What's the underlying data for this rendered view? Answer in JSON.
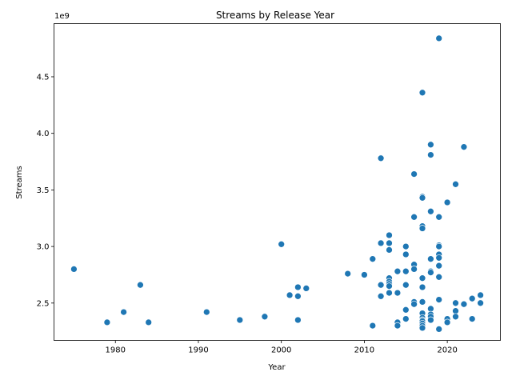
{
  "chart_data": {
    "type": "scatter",
    "title": "Streams by Release Year",
    "xlabel": "Year",
    "ylabel": "Streams",
    "y_offset_label": "1e9",
    "xlim": [
      1972.6,
      2026.4
    ],
    "ylim": [
      2.17,
      4.97
    ],
    "xticks": [
      1980,
      1990,
      2000,
      2010,
      2020
    ],
    "yticks": [
      2.5,
      3.0,
      3.5,
      4.0,
      4.5
    ],
    "ytick_labels": [
      "2.5",
      "3.0",
      "3.5",
      "4.0",
      "4.5"
    ],
    "grid": false,
    "legend": "none",
    "marker_color": "#1f77b4",
    "y_unit": "billions of streams",
    "points": [
      [
        2019,
        4.84
      ],
      [
        2017,
        4.36
      ],
      [
        2018,
        3.9
      ],
      [
        2022,
        3.88
      ],
      [
        2018,
        3.81
      ],
      [
        2012,
        3.78
      ],
      [
        2016,
        3.64
      ],
      [
        2021,
        3.55
      ],
      [
        2017,
        3.44
      ],
      [
        2017,
        3.43
      ],
      [
        2020,
        3.39
      ],
      [
        2018,
        3.31
      ],
      [
        2016,
        3.26
      ],
      [
        2019,
        3.26
      ],
      [
        2017,
        3.18
      ],
      [
        2017,
        3.16
      ],
      [
        2013,
        3.1
      ],
      [
        2012,
        3.03
      ],
      [
        2013,
        3.03
      ],
      [
        2000,
        3.02
      ],
      [
        2019,
        3.01
      ],
      [
        2019,
        3.0
      ],
      [
        2015,
        3.0
      ],
      [
        2013,
        2.97
      ],
      [
        2015,
        2.93
      ],
      [
        2019,
        2.93
      ],
      [
        2019,
        2.9
      ],
      [
        2011,
        2.89
      ],
      [
        2018,
        2.89
      ],
      [
        2016,
        2.84
      ],
      [
        2019,
        2.83
      ],
      [
        1975,
        2.8
      ],
      [
        2016,
        2.8
      ],
      [
        2014,
        2.78
      ],
      [
        2015,
        2.78
      ],
      [
        2018,
        2.78
      ],
      [
        2018,
        2.77
      ],
      [
        2008,
        2.76
      ],
      [
        2010,
        2.75
      ],
      [
        2019,
        2.73
      ],
      [
        2013,
        2.72
      ],
      [
        2017,
        2.72
      ],
      [
        2013,
        2.69
      ],
      [
        2013,
        2.67
      ],
      [
        1983,
        2.66
      ],
      [
        2012,
        2.66
      ],
      [
        2015,
        2.66
      ],
      [
        2013,
        2.65
      ],
      [
        2002,
        2.64
      ],
      [
        2017,
        2.64
      ],
      [
        2003,
        2.63
      ],
      [
        2013,
        2.59
      ],
      [
        2014,
        2.59
      ],
      [
        2001,
        2.57
      ],
      [
        2024,
        2.57
      ],
      [
        2002,
        2.56
      ],
      [
        2012,
        2.56
      ],
      [
        2023,
        2.54
      ],
      [
        2019,
        2.53
      ],
      [
        2016,
        2.51
      ],
      [
        2017,
        2.51
      ],
      [
        2021,
        2.5
      ],
      [
        2024,
        2.5
      ],
      [
        2016,
        2.49
      ],
      [
        2022,
        2.49
      ],
      [
        2018,
        2.45
      ],
      [
        2015,
        2.44
      ],
      [
        2021,
        2.43
      ],
      [
        1981,
        2.42
      ],
      [
        1991,
        2.42
      ],
      [
        2017,
        2.41
      ],
      [
        2018,
        2.4
      ],
      [
        2018,
        2.38
      ],
      [
        1998,
        2.38
      ],
      [
        2021,
        2.38
      ],
      [
        2017,
        2.37
      ],
      [
        2023,
        2.36
      ],
      [
        2020,
        2.36
      ],
      [
        2015,
        2.36
      ],
      [
        2017,
        2.35
      ],
      [
        1995,
        2.35
      ],
      [
        2002,
        2.35
      ],
      [
        2018,
        2.35
      ],
      [
        2017,
        2.34
      ],
      [
        2014,
        2.33
      ],
      [
        1979,
        2.33
      ],
      [
        1984,
        2.33
      ],
      [
        2020,
        2.33
      ],
      [
        2017,
        2.32
      ],
      [
        2014,
        2.3
      ],
      [
        2011,
        2.3
      ],
      [
        2017,
        2.3
      ],
      [
        2017,
        2.28
      ],
      [
        2019,
        2.27
      ]
    ]
  }
}
